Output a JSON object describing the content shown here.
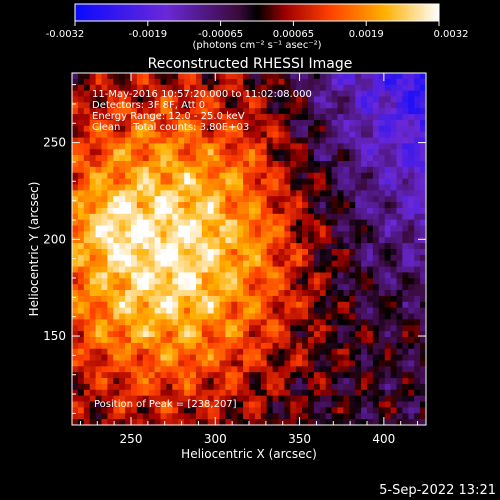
{
  "colorbar": {
    "tick_labels": [
      "-0.0032",
      "-0.0019",
      "-0.00065",
      "0.00065",
      "0.0019",
      "0.0032"
    ],
    "units_label": "(photons cm⁻² s⁻¹ asec⁻²)",
    "min": -0.0032,
    "max": 0.0032
  },
  "chart_data": {
    "type": "heatmap",
    "title": "Reconstructed RHESSI Image",
    "xlabel": "Heliocentric X (arcsec)",
    "ylabel": "Heliocentric Y (arcsec)",
    "xlim": [
      215,
      425
    ],
    "ylim": [
      104,
      286
    ],
    "x_ticks": [
      250,
      300,
      350,
      400
    ],
    "y_ticks": [
      150,
      200,
      250
    ],
    "colormap": "blue-purple-red-orange-yellow-white",
    "peak_position": [
      238,
      207
    ],
    "grid": false,
    "annotations": {
      "time_range": "11-May-2016 10:57:20.000 to 11:02:08.000",
      "detectors": "Detectors: 3F 8F, Att 0",
      "energy_range": "Energy Range: 12.0 - 25.0 keV",
      "clean_counts": "Clean    Total counts: 3.80E+03",
      "peak_label": "Position of Peak = [238,207]"
    }
  },
  "footer": {
    "date_stamp": "5-Sep-2022 13:21"
  }
}
